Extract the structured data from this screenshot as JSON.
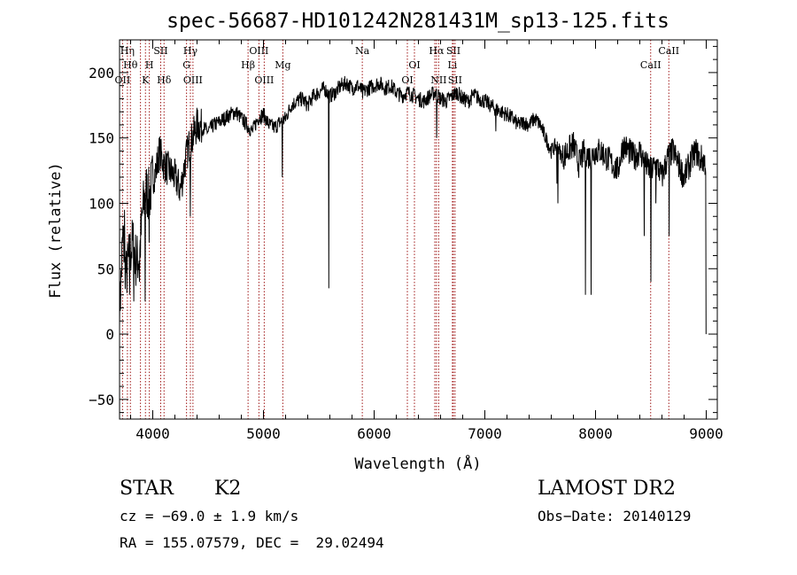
{
  "chart_data": {
    "type": "line",
    "title": "spec-56687-HD101242N281431M_sp13-125.fits",
    "xlabel": "Wavelength (Å)",
    "ylabel": "Flux (relative)",
    "xlim": [
      3700,
      9100
    ],
    "ylim": [
      -65,
      225
    ],
    "x_ticks": [
      4000,
      5000,
      6000,
      7000,
      8000,
      9000
    ],
    "y_ticks": [
      -50,
      0,
      50,
      100,
      150,
      200
    ],
    "grid": false,
    "series": [
      {
        "x": [
          3700,
          3730,
          3760,
          3790,
          3820,
          3850,
          3880,
          3910,
          3940,
          3970,
          4000,
          4030,
          4060,
          4100,
          4150,
          4200,
          4250,
          4300,
          4330,
          4360,
          4400,
          4450,
          4500,
          4550,
          4600,
          4650,
          4700,
          4750,
          4800,
          4850,
          4900,
          4950,
          5000,
          5050,
          5100,
          5150,
          5200,
          5250,
          5300,
          5350,
          5400,
          5450,
          5500,
          5550,
          5600,
          5650,
          5700,
          5750,
          5800,
          5850,
          5900,
          5950,
          6000,
          6050,
          6100,
          6150,
          6200,
          6250,
          6300,
          6350,
          6400,
          6450,
          6500,
          6550,
          6600,
          6650,
          6700,
          6750,
          6800,
          6850,
          6900,
          6950,
          7000,
          7050,
          7100,
          7150,
          7200,
          7250,
          7300,
          7350,
          7400,
          7450,
          7500,
          7550,
          7600,
          7650,
          7700,
          7750,
          7800,
          7850,
          7900,
          7950,
          8000,
          8050,
          8100,
          8150,
          8200,
          8250,
          8300,
          8350,
          8400,
          8450,
          8500,
          8550,
          8600,
          8650,
          8700,
          8750,
          8800,
          8850,
          8900,
          8950,
          9000
        ],
        "y": [
          15,
          75,
          45,
          60,
          70,
          55,
          60,
          95,
          110,
          105,
          120,
          125,
          140,
          130,
          125,
          120,
          110,
          135,
          145,
          150,
          160,
          158,
          155,
          160,
          162,
          165,
          168,
          170,
          165,
          160,
          155,
          165,
          168,
          160,
          158,
          162,
          165,
          175,
          178,
          180,
          175,
          182,
          185,
          188,
          182,
          185,
          190,
          192,
          188,
          190,
          185,
          188,
          190,
          192,
          188,
          190,
          185,
          182,
          185,
          183,
          180,
          178,
          182,
          185,
          180,
          178,
          182,
          185,
          180,
          178,
          183,
          180,
          178,
          175,
          172,
          170,
          168,
          165,
          160,
          162,
          160,
          165,
          160,
          150,
          140,
          145,
          135,
          140,
          145,
          130,
          140,
          135,
          140,
          140,
          135,
          130,
          125,
          145,
          140,
          135,
          140,
          130,
          125,
          130,
          120,
          135,
          140,
          130,
          120,
          130,
          140,
          135,
          130
        ]
      }
    ],
    "spikes": [
      {
        "x": 3700,
        "y": 5
      },
      {
        "x": 3745,
        "y": 95
      },
      {
        "x": 3790,
        "y": 30
      },
      {
        "x": 3830,
        "y": 25
      },
      {
        "x": 3880,
        "y": 40
      },
      {
        "x": 3930,
        "y": 25
      },
      {
        "x": 3968,
        "y": 70
      },
      {
        "x": 4340,
        "y": 90
      },
      {
        "x": 5170,
        "y": 120
      },
      {
        "x": 5590,
        "y": 35
      },
      {
        "x": 5895,
        "y": 180
      },
      {
        "x": 6565,
        "y": 150
      },
      {
        "x": 7100,
        "y": 155
      },
      {
        "x": 7650,
        "y": 115
      },
      {
        "x": 7660,
        "y": 100
      },
      {
        "x": 7910,
        "y": 30
      },
      {
        "x": 7960,
        "y": 30
      },
      {
        "x": 8440,
        "y": 75
      },
      {
        "x": 8500,
        "y": 40
      },
      {
        "x": 8545,
        "y": 100
      },
      {
        "x": 8665,
        "y": 75
      },
      {
        "x": 8940,
        "y": 125
      },
      {
        "x": 9000,
        "y": 0
      }
    ],
    "lines": [
      {
        "x": 3727,
        "label": "OII",
        "row": 3
      },
      {
        "x": 3771,
        "label": "Hη",
        "row": 1
      },
      {
        "x": 3798,
        "label": "Hθ",
        "row": 2
      },
      {
        "x": 3889,
        "label": "",
        "row": 0
      },
      {
        "x": 3934,
        "label": "K",
        "row": 3
      },
      {
        "x": 3969,
        "label": "H",
        "row": 2
      },
      {
        "x": 4072,
        "label": "SII",
        "row": 1
      },
      {
        "x": 4102,
        "label": "Hδ",
        "row": 3
      },
      {
        "x": 4305,
        "label": "G",
        "row": 2
      },
      {
        "x": 4340,
        "label": "Hγ",
        "row": 1
      },
      {
        "x": 4363,
        "label": "OIII",
        "row": 3
      },
      {
        "x": 4861,
        "label": "Hβ",
        "row": 2
      },
      {
        "x": 4959,
        "label": "OIII",
        "row": 1
      },
      {
        "x": 5007,
        "label": "OIII",
        "row": 3
      },
      {
        "x": 5175,
        "label": "Mg",
        "row": 2
      },
      {
        "x": 5893,
        "label": "Na",
        "row": 1
      },
      {
        "x": 6300,
        "label": "OI",
        "row": 3
      },
      {
        "x": 6364,
        "label": "OI",
        "row": 2
      },
      {
        "x": 6548,
        "label": "",
        "row": 0
      },
      {
        "x": 6563,
        "label": "Hα",
        "row": 1
      },
      {
        "x": 6583,
        "label": "NII",
        "row": 3
      },
      {
        "x": 6707,
        "label": "Li",
        "row": 2
      },
      {
        "x": 6716,
        "label": "SII",
        "row": 1
      },
      {
        "x": 6731,
        "label": "SII",
        "row": 3
      },
      {
        "x": 8498,
        "label": "CaII",
        "row": 2
      },
      {
        "x": 8662,
        "label": "CaII",
        "row": 1
      }
    ]
  },
  "info": {
    "object_class": "STAR",
    "subclass": "K2",
    "survey": "LAMOST DR2",
    "redshift": "cz = −69.0 ± 1.9 km/s",
    "obs_date": "Obs−Date: 20140129",
    "coords": "RA = 155.07579, DEC =  29.02494"
  }
}
